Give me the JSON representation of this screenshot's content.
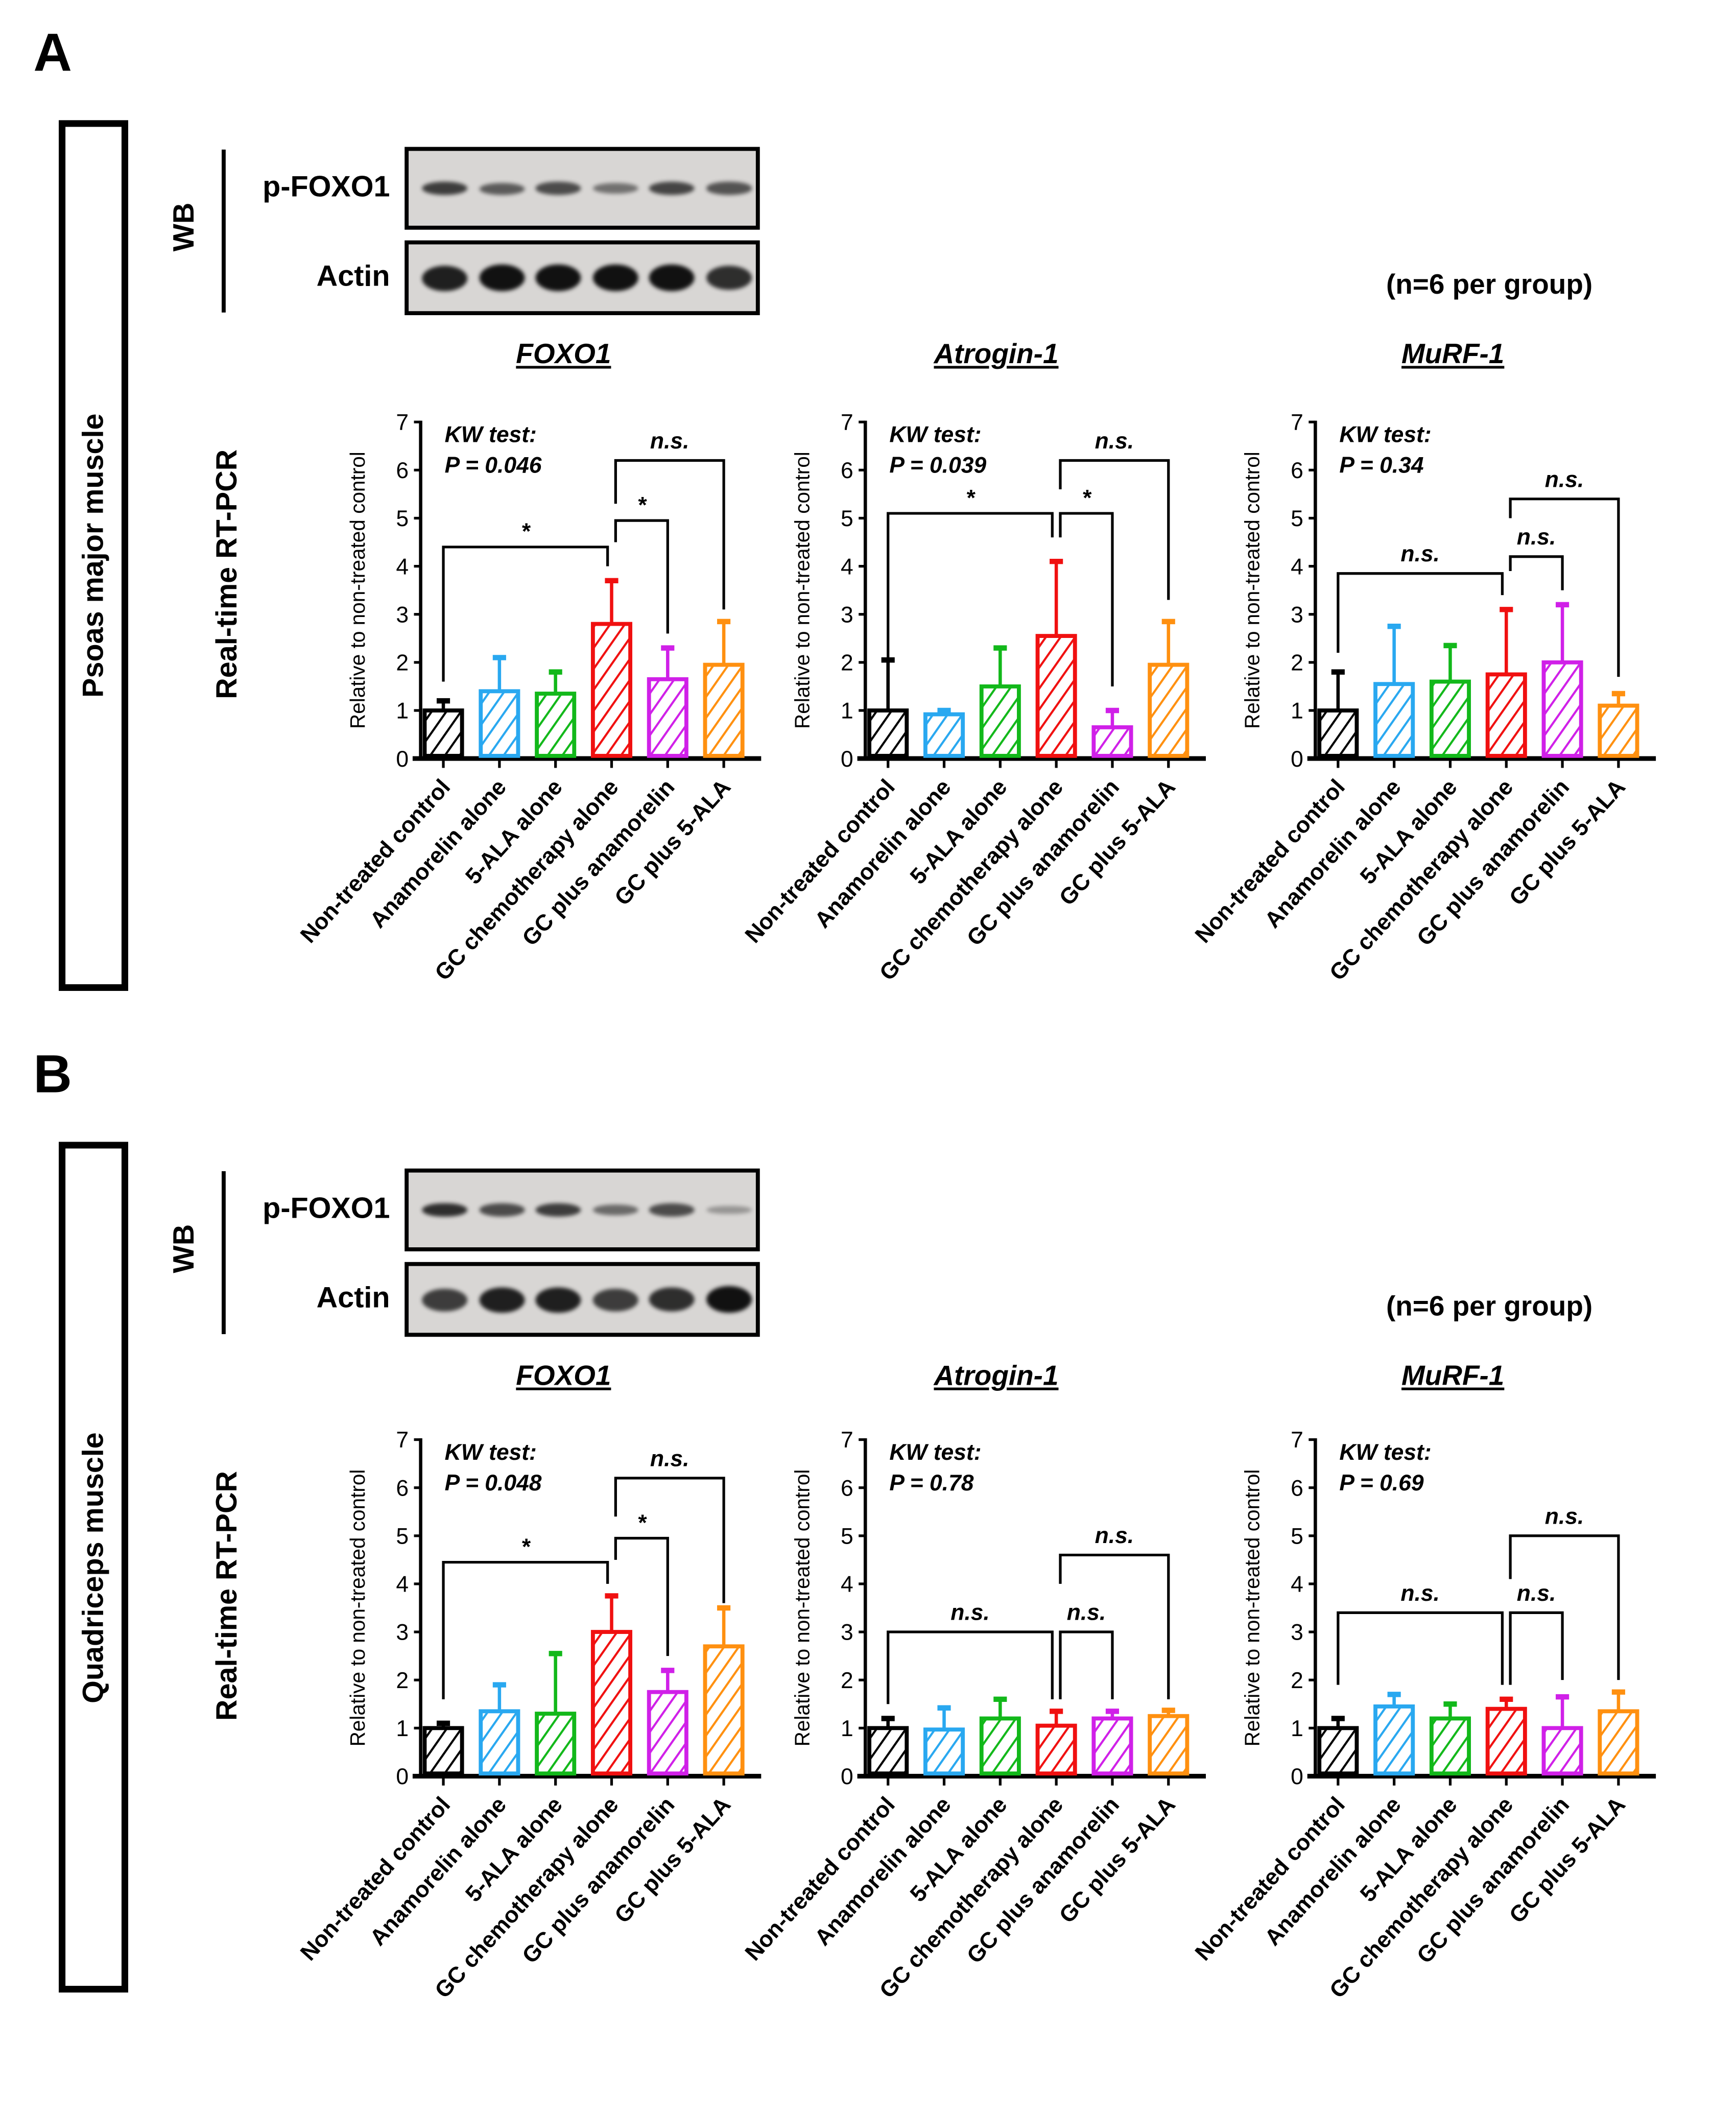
{
  "panels": [
    {
      "letter": "A",
      "tissue": "Psoas major muscle",
      "wb_label": "WB",
      "blot_rows": [
        {
          "label": "p-FOXO1",
          "band_intensity": [
            0.7,
            0.5,
            0.6,
            0.35,
            0.65,
            0.55
          ]
        },
        {
          "label": "Actin",
          "band_intensity": [
            0.9,
            1.0,
            1.0,
            1.0,
            1.0,
            0.8
          ]
        }
      ],
      "n_note": "(n=6 per group)",
      "rtpcr_label": "Real-time RT-PCR",
      "titles": [
        "FOXO1",
        "Atrogin-1",
        "MuRF-1"
      ]
    },
    {
      "letter": "B",
      "tissue": "Quadriceps muscle",
      "wb_label": "WB",
      "blot_rows": [
        {
          "label": "p-FOXO1",
          "band_intensity": [
            0.8,
            0.6,
            0.7,
            0.4,
            0.6,
            0.1
          ]
        },
        {
          "label": "Actin",
          "band_intensity": [
            0.7,
            0.9,
            0.9,
            0.7,
            0.8,
            1.0
          ]
        }
      ],
      "n_note": "(n=6 per group)",
      "rtpcr_label": "Real-time RT-PCR",
      "titles": [
        "FOXO1",
        "Atrogin-1",
        "MuRF-1"
      ]
    }
  ],
  "colors": [
    "#000000",
    "#29a8f0",
    "#12b81a",
    "#f01010",
    "#d020e8",
    "#ff9010"
  ],
  "chart_data": [
    {
      "type": "bar",
      "panel": "A",
      "title": "FOXO1",
      "ylabel": "Relative to non-treated control",
      "ylim": [
        0,
        7
      ],
      "yticks": [
        "0",
        "1",
        "2",
        "3",
        "4",
        "5",
        "6",
        "7"
      ],
      "categories": [
        "Non-treated control",
        "Anamorelin alone",
        "5-ALA alone",
        "GC chemotherapy alone",
        "GC plus anamorelin",
        "GC plus 5-ALA"
      ],
      "values": [
        1.0,
        1.4,
        1.35,
        2.8,
        1.65,
        1.95
      ],
      "errors": [
        0.2,
        0.7,
        0.45,
        0.9,
        0.65,
        0.9
      ],
      "kw_label": "KW test:",
      "kw_p": "P = 0.046",
      "brackets": [
        {
          "from": 0,
          "to": 3,
          "y": 4.4,
          "drop_from": 1.6,
          "drop_to": 4.0,
          "label": "*"
        },
        {
          "from": 3,
          "to": 4,
          "y": 4.95,
          "drop_from": 4.5,
          "drop_to": 2.6,
          "label": "*"
        },
        {
          "from": 3,
          "to": 5,
          "y": 6.2,
          "drop_from": 5.3,
          "drop_to": 3.1,
          "label": "n.s."
        }
      ]
    },
    {
      "type": "bar",
      "panel": "A",
      "title": "Atrogin-1",
      "ylabel": "Relative to non-treated control",
      "ylim": [
        0,
        7
      ],
      "yticks": [
        "0",
        "1",
        "2",
        "3",
        "4",
        "5",
        "6",
        "7"
      ],
      "categories": [
        "Non-treated control",
        "Anamorelin alone",
        "5-ALA alone",
        "GC chemotherapy alone",
        "GC plus anamorelin",
        "GC plus 5-ALA"
      ],
      "values": [
        1.0,
        0.92,
        1.5,
        2.55,
        0.65,
        1.95
      ],
      "errors": [
        1.05,
        0.08,
        0.8,
        1.55,
        0.35,
        0.9
      ],
      "kw_label": "KW test:",
      "kw_p": "P = 0.039",
      "brackets": [
        {
          "from": 0,
          "to": 3,
          "y": 5.1,
          "drop_from": 2.1,
          "drop_to": 4.6,
          "label": "*"
        },
        {
          "from": 3,
          "to": 4,
          "y": 5.1,
          "drop_from": 4.6,
          "drop_to": 1.5,
          "label": "*"
        },
        {
          "from": 3,
          "to": 5,
          "y": 6.2,
          "drop_from": 5.6,
          "drop_to": 3.3,
          "label": "n.s."
        }
      ]
    },
    {
      "type": "bar",
      "panel": "A",
      "title": "MuRF-1",
      "ylabel": "Relative to non-treated control",
      "ylim": [
        0,
        7
      ],
      "yticks": [
        "0",
        "1",
        "2",
        "3",
        "4",
        "5",
        "6",
        "7"
      ],
      "categories": [
        "Non-treated control",
        "Anamorelin alone",
        "5-ALA alone",
        "GC chemotherapy alone",
        "GC plus anamorelin",
        "GC plus 5-ALA"
      ],
      "values": [
        1.0,
        1.55,
        1.6,
        1.75,
        2.0,
        1.1
      ],
      "errors": [
        0.8,
        1.2,
        0.75,
        1.35,
        1.2,
        0.25
      ],
      "kw_label": "KW test:",
      "kw_p": "P = 0.34",
      "brackets": [
        {
          "from": 0,
          "to": 3,
          "y": 3.85,
          "drop_from": 2.2,
          "drop_to": 3.4,
          "label": "n.s."
        },
        {
          "from": 3,
          "to": 4,
          "y": 4.2,
          "drop_from": 3.9,
          "drop_to": 3.5,
          "label": "n.s."
        },
        {
          "from": 3,
          "to": 5,
          "y": 5.4,
          "drop_from": 5.0,
          "drop_to": 1.7,
          "label": "n.s."
        }
      ]
    },
    {
      "type": "bar",
      "panel": "B",
      "title": "FOXO1",
      "ylabel": "Relative to non-treated control",
      "ylim": [
        0,
        7
      ],
      "yticks": [
        "0",
        "1",
        "2",
        "3",
        "4",
        "5",
        "6",
        "7"
      ],
      "categories": [
        "Non-treated control",
        "Anamorelin alone",
        "5-ALA alone",
        "GC chemotherapy alone",
        "GC plus anamorelin",
        "GC plus 5-ALA"
      ],
      "values": [
        1.0,
        1.35,
        1.3,
        3.0,
        1.75,
        2.7
      ],
      "errors": [
        0.1,
        0.55,
        1.25,
        0.75,
        0.45,
        0.8
      ],
      "kw_label": "KW test:",
      "kw_p": "P = 0.048",
      "brackets": [
        {
          "from": 0,
          "to": 3,
          "y": 4.45,
          "drop_from": 1.6,
          "drop_to": 4.0,
          "label": "*"
        },
        {
          "from": 3,
          "to": 4,
          "y": 4.95,
          "drop_from": 4.5,
          "drop_to": 2.5,
          "label": "*"
        },
        {
          "from": 3,
          "to": 5,
          "y": 6.2,
          "drop_from": 5.4,
          "drop_to": 3.6,
          "label": "n.s."
        }
      ]
    },
    {
      "type": "bar",
      "panel": "B",
      "title": "Atrogin-1",
      "ylabel": "Relative to non-treated control",
      "ylim": [
        0,
        7
      ],
      "yticks": [
        "0",
        "1",
        "2",
        "3",
        "4",
        "5",
        "6",
        "7"
      ],
      "categories": [
        "Non-treated control",
        "Anamorelin alone",
        "5-ALA alone",
        "GC chemotherapy alone",
        "GC plus anamorelin",
        "GC plus 5-ALA"
      ],
      "values": [
        1.0,
        0.97,
        1.2,
        1.05,
        1.2,
        1.25
      ],
      "errors": [
        0.2,
        0.45,
        0.4,
        0.3,
        0.15,
        0.12
      ],
      "kw_label": "KW test:",
      "kw_p": "P = 0.78",
      "brackets": [
        {
          "from": 0,
          "to": 3,
          "y": 3.0,
          "drop_from": 1.5,
          "drop_to": 1.6,
          "label": "n.s."
        },
        {
          "from": 3,
          "to": 4,
          "y": 3.0,
          "drop_from": 1.6,
          "drop_to": 1.6,
          "label": "n.s."
        },
        {
          "from": 3,
          "to": 5,
          "y": 4.6,
          "drop_from": 4.0,
          "drop_to": 1.6,
          "label": "n.s."
        }
      ]
    },
    {
      "type": "bar",
      "panel": "B",
      "title": "MuRF-1",
      "ylabel": "Relative to non-treated control",
      "ylim": [
        0,
        7
      ],
      "yticks": [
        "0",
        "1",
        "2",
        "3",
        "4",
        "5",
        "6",
        "7"
      ],
      "categories": [
        "Non-treated control",
        "Anamorelin alone",
        "5-ALA alone",
        "GC chemotherapy alone",
        "GC plus anamorelin",
        "GC plus 5-ALA"
      ],
      "values": [
        1.0,
        1.45,
        1.2,
        1.4,
        1.0,
        1.35
      ],
      "errors": [
        0.2,
        0.25,
        0.3,
        0.2,
        0.65,
        0.4
      ],
      "kw_label": "KW test:",
      "kw_p": "P = 0.69",
      "brackets": [
        {
          "from": 0,
          "to": 3,
          "y": 3.4,
          "drop_from": 1.9,
          "drop_to": 1.9,
          "label": "n.s."
        },
        {
          "from": 3,
          "to": 4,
          "y": 3.4,
          "drop_from": 1.9,
          "drop_to": 2.0,
          "label": "n.s."
        },
        {
          "from": 3,
          "to": 5,
          "y": 5.0,
          "drop_from": 4.1,
          "drop_to": 2.0,
          "label": "n.s."
        }
      ]
    }
  ]
}
